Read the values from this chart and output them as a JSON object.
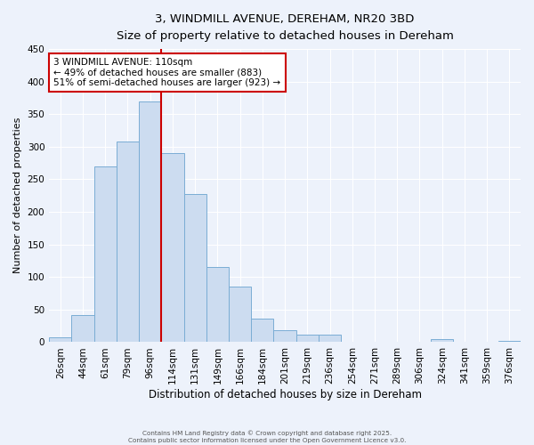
{
  "title": "3, WINDMILL AVENUE, DEREHAM, NR20 3BD",
  "subtitle": "Size of property relative to detached houses in Dereham",
  "xlabel": "Distribution of detached houses by size in Dereham",
  "ylabel": "Number of detached properties",
  "categories": [
    "26sqm",
    "44sqm",
    "61sqm",
    "79sqm",
    "96sqm",
    "114sqm",
    "131sqm",
    "149sqm",
    "166sqm",
    "184sqm",
    "201sqm",
    "219sqm",
    "236sqm",
    "254sqm",
    "271sqm",
    "289sqm",
    "306sqm",
    "324sqm",
    "341sqm",
    "359sqm",
    "376sqm"
  ],
  "bar_values": [
    7,
    42,
    270,
    308,
    370,
    290,
    227,
    115,
    86,
    36,
    18,
    12,
    12,
    0,
    0,
    0,
    0,
    5,
    0,
    0,
    2
  ],
  "bar_color": "#ccdcf0",
  "bar_edge_color": "#7aadd4",
  "ylim": [
    0,
    450
  ],
  "yticks": [
    0,
    50,
    100,
    150,
    200,
    250,
    300,
    350,
    400,
    450
  ],
  "vline_x": 4.5,
  "vline_color": "#cc0000",
  "annotation_title": "3 WINDMILL AVENUE: 110sqm",
  "annotation_line1": "← 49% of detached houses are smaller (883)",
  "annotation_line2": "51% of semi-detached houses are larger (923) →",
  "annotation_box_color": "#ffffff",
  "annotation_box_edge": "#cc0000",
  "footer1": "Contains HM Land Registry data © Crown copyright and database right 2025.",
  "footer2": "Contains public sector information licensed under the Open Government Licence v3.0.",
  "bg_color": "#edf2fb",
  "plot_bg_color": "#edf2fb",
  "grid_color": "#ffffff"
}
